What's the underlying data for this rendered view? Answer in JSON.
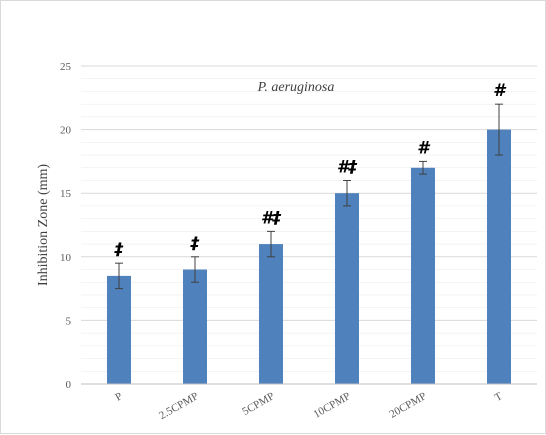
{
  "chart_data": {
    "type": "bar",
    "title": "",
    "annotation": "P. aeruginosa",
    "xlabel": "",
    "ylabel": "Inhibition Zone (mm)",
    "ylim": [
      0,
      25
    ],
    "yticks": [
      0,
      5,
      10,
      15,
      20,
      25
    ],
    "grid": true,
    "categories": [
      "P",
      "2.5CPMP",
      "5CPMP",
      "10CPMP",
      "20CPMP",
      "T"
    ],
    "values": [
      8.5,
      9,
      11,
      15,
      17,
      20
    ],
    "errors": [
      1,
      1,
      1,
      1,
      0.5,
      2
    ],
    "significance": [
      "‡",
      "‡",
      "#‡",
      "#‡",
      "#",
      "#"
    ],
    "colors": {
      "bar": "#4f81bd",
      "grid": "#d9d9d9",
      "axis": "#bfbfbf",
      "error": "#404040"
    }
  }
}
